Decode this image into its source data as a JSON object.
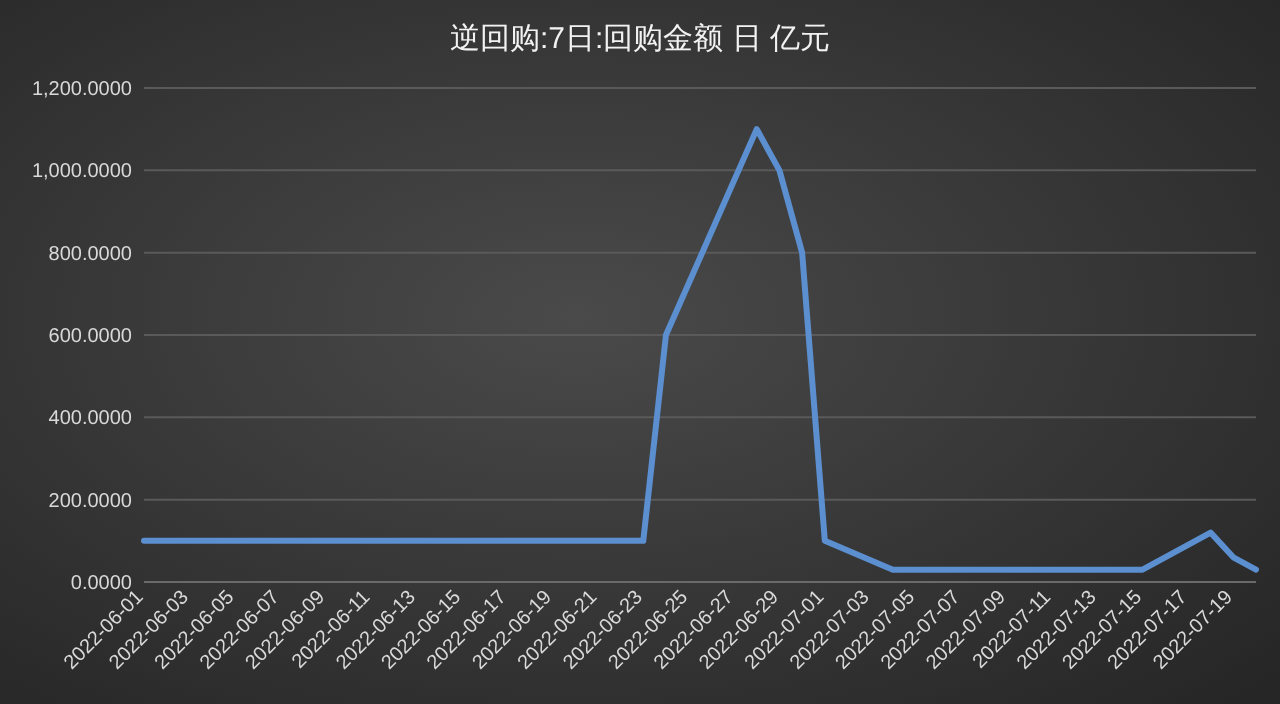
{
  "chart_data": {
    "type": "line",
    "title": "逆回购:7日:回购金额 日 亿元",
    "x": [
      "2022-06-01",
      "2022-06-23",
      "2022-06-24",
      "2022-06-28",
      "2022-06-29",
      "2022-06-30",
      "2022-07-01",
      "2022-07-04",
      "2022-07-15",
      "2022-07-18",
      "2022-07-19",
      "2022-07-20"
    ],
    "series": [
      {
        "color": "#5b8fd0",
        "values": [
          100,
          100,
          600,
          1100,
          1000,
          800,
          100,
          30,
          30,
          120,
          60,
          30
        ]
      }
    ],
    "xlim": [
      "2022-06-01",
      "2022-07-20"
    ],
    "xticks": [
      "2022-06-01",
      "2022-06-03",
      "2022-06-05",
      "2022-06-07",
      "2022-06-09",
      "2022-06-11",
      "2022-06-13",
      "2022-06-15",
      "2022-06-17",
      "2022-06-19",
      "2022-06-21",
      "2022-06-23",
      "2022-06-25",
      "2022-06-27",
      "2022-06-29",
      "2022-07-01",
      "2022-07-03",
      "2022-07-05",
      "2022-07-07",
      "2022-07-09",
      "2022-07-11",
      "2022-07-13",
      "2022-07-15",
      "2022-07-17",
      "2022-07-19"
    ],
    "ylim": [
      0,
      1200
    ],
    "yticks": [
      {
        "value": 0,
        "label": "0.0000"
      },
      {
        "value": 200,
        "label": "200.0000"
      },
      {
        "value": 400,
        "label": "400.0000"
      },
      {
        "value": 600,
        "label": "600.0000"
      },
      {
        "value": 800,
        "label": "800.0000"
      },
      {
        "value": 1000,
        "label": "1,000.0000"
      },
      {
        "value": 1200,
        "label": "1,200.0000"
      }
    ],
    "grid": "y",
    "marker": "none",
    "line_style": "solid"
  }
}
